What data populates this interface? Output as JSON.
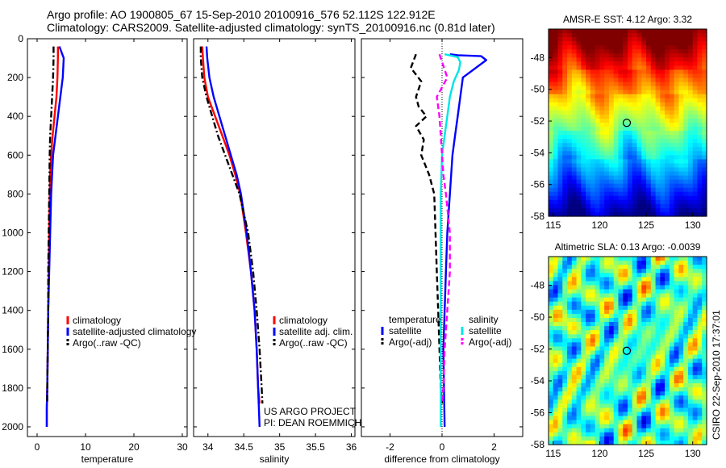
{
  "header": {
    "line1": "Argo profile: AO 1900805_67 15-Sep-2010 20100916_576 52.112S 122.912E",
    "line2": "Climatology: CARS2009. Satellite-adjusted climatology: synTS_20100916.nc (0.81d later)"
  },
  "side_label": "CSIRO 22-Sep-2010 17:37:01",
  "credit": {
    "line1": "US ARGO PROJECT",
    "line2": "PI: DEAN ROEMMICH"
  },
  "colors": {
    "climatology": "#ff0000",
    "satellite": "#0000ff",
    "argo": "#000000",
    "cyan": "#00e5e5",
    "magenta": "#ff00ff"
  },
  "chart_data": [
    {
      "type": "line",
      "xlabel": "temperature",
      "ylim": [
        2050,
        0
      ],
      "xlim": [
        -2,
        31
      ],
      "xticks": [
        0,
        10,
        20,
        30
      ],
      "yticks": [
        0,
        200,
        400,
        600,
        800,
        1000,
        1200,
        1400,
        1600,
        1800,
        2000
      ],
      "legend": [
        "climatology",
        "satellite-adjusted climatology",
        "Argo(..raw -QC)"
      ],
      "series": [
        {
          "name": "climatology",
          "color": "#ff0000",
          "dash": "solid",
          "x": [
            4.3,
            4.3,
            4.2,
            4.0,
            3.6,
            3.2,
            2.9,
            2.7,
            2.6,
            2.5,
            2.4,
            2.3,
            2.2,
            2.1,
            2.0,
            2.0
          ],
          "y": [
            40,
            100,
            200,
            300,
            400,
            500,
            600,
            700,
            800,
            1000,
            1200,
            1400,
            1600,
            1800,
            1900,
            2000
          ]
        },
        {
          "name": "satellite-adjusted climatology",
          "color": "#0000ff",
          "dash": "solid",
          "x": [
            4.6,
            5.2,
            5.5,
            5.3,
            4.8,
            4.3,
            3.8,
            3.3,
            2.9,
            2.7,
            2.5,
            2.3,
            2.2,
            2.1,
            2.0,
            2.0
          ],
          "y": [
            40,
            80,
            100,
            200,
            300,
            400,
            500,
            600,
            800,
            1000,
            1200,
            1400,
            1600,
            1800,
            1900,
            2000
          ]
        },
        {
          "name": "Argo(..raw -QC)",
          "color": "#000000",
          "dash": "dashdot",
          "x": [
            3.4,
            3.4,
            3.3,
            3.1,
            2.9,
            2.7,
            2.6,
            2.5,
            2.4,
            2.3,
            2.3,
            2.2,
            2.1,
            2.1
          ],
          "y": [
            40,
            100,
            200,
            300,
            400,
            500,
            600,
            800,
            1000,
            1200,
            1400,
            1600,
            1800,
            1880
          ]
        }
      ]
    },
    {
      "type": "line",
      "xlabel": "salinity",
      "ylim": [
        2050,
        0
      ],
      "xlim": [
        33.8,
        36.05
      ],
      "xticks": [
        34,
        34.5,
        35,
        35.5,
        36
      ],
      "legend": [
        "climatology",
        "satellite adj. clim.",
        "Argo(..raw -QC)"
      ],
      "series": [
        {
          "name": "climatology",
          "color": "#ff0000",
          "dash": "solid",
          "x": [
            33.92,
            33.93,
            33.95,
            34.0,
            34.1,
            34.2,
            34.3,
            34.38,
            34.45,
            34.53,
            34.6,
            34.65,
            34.68,
            34.7,
            34.72
          ],
          "y": [
            40,
            100,
            200,
            300,
            400,
            500,
            600,
            700,
            800,
            1000,
            1200,
            1400,
            1600,
            1800,
            1880
          ]
        },
        {
          "name": "satellite adj. clim.",
          "color": "#0000ff",
          "dash": "solid",
          "x": [
            33.98,
            33.99,
            34.02,
            34.08,
            34.16,
            34.24,
            34.32,
            34.4,
            34.46,
            34.54,
            34.6,
            34.65,
            34.68,
            34.7,
            34.72
          ],
          "y": [
            40,
            100,
            200,
            300,
            400,
            500,
            600,
            700,
            800,
            1000,
            1200,
            1400,
            1600,
            1800,
            2000
          ]
        },
        {
          "name": "Argo(..raw -QC)",
          "color": "#000000",
          "dash": "dashdot",
          "x": [
            33.9,
            33.9,
            33.92,
            33.98,
            34.06,
            34.14,
            34.24,
            34.34,
            34.44,
            34.56,
            34.63,
            34.68,
            34.72,
            34.75,
            34.76
          ],
          "y": [
            40,
            100,
            200,
            300,
            400,
            500,
            600,
            700,
            800,
            1000,
            1200,
            1400,
            1600,
            1800,
            1880
          ]
        }
      ]
    },
    {
      "type": "line",
      "xlabel": "difference from climatology",
      "ylim": [
        2050,
        0
      ],
      "xlim": [
        -3.1,
        3.1
      ],
      "xticks": [
        -2,
        0,
        2
      ],
      "legend_groups": [
        {
          "title": "temperature",
          "items": [
            "satellite",
            "Argo(-adj)"
          ]
        },
        {
          "title": "salinity",
          "items": [
            "satellite",
            "Argo(-adj)"
          ]
        }
      ],
      "series": [
        {
          "name": "satellite",
          "group": "temperature",
          "color": "#0000ff",
          "dash": "solid",
          "x": [
            0.3,
            0.6,
            1.5,
            1.7,
            0.8,
            0.7,
            0.6,
            0.5,
            0.4,
            0.3,
            0.2,
            0.15,
            0.1,
            0.05,
            0.1
          ],
          "y": [
            80,
            85,
            90,
            110,
            200,
            300,
            400,
            500,
            600,
            800,
            1000,
            1200,
            1400,
            1600,
            2000
          ]
        },
        {
          "name": "Argo(-adj)",
          "group": "temperature",
          "color": "#000000",
          "dash": "dashed",
          "x": [
            -1.0,
            -1.2,
            -0.8,
            -1.0,
            -0.9,
            -0.6,
            -1.0,
            -0.7,
            -0.8,
            -0.5,
            -0.3,
            -0.25,
            -0.2,
            -0.15,
            -0.1,
            -0.05,
            0.0
          ],
          "y": [
            80,
            150,
            220,
            300,
            350,
            400,
            450,
            520,
            600,
            700,
            800,
            1000,
            1200,
            1400,
            1600,
            1800,
            1880
          ]
        },
        {
          "name": "satellite",
          "group": "salinity",
          "color": "#00e5e5",
          "dash": "solid",
          "x": [
            0.1,
            0.6,
            0.7,
            0.65,
            0.45,
            0.3,
            0.2,
            0.1,
            0.0,
            -0.05,
            -0.05,
            -0.05,
            -0.05,
            -0.05,
            -0.05
          ],
          "y": [
            80,
            95,
            120,
            160,
            220,
            300,
            400,
            500,
            600,
            800,
            1000,
            1200,
            1400,
            1600,
            2000
          ]
        },
        {
          "name": "Argo(-adj)",
          "group": "salinity",
          "color": "#ff00ff",
          "dash": "dashed",
          "x": [
            -0.1,
            0.0,
            0.2,
            -0.2,
            -0.1,
            -0.05,
            0.0,
            0.05,
            0.15,
            0.3,
            0.3,
            0.2,
            0.1,
            0.05,
            0.0
          ],
          "y": [
            80,
            120,
            200,
            300,
            400,
            500,
            600,
            700,
            800,
            1000,
            1200,
            1400,
            1600,
            1800,
            1880
          ]
        }
      ],
      "zero_line": true
    },
    {
      "type": "heatmap",
      "title": "AMSR-E SST: 4.12 Argo: 3.32",
      "xlim": [
        114.5,
        131.5
      ],
      "ylim": [
        -58,
        -46.2
      ],
      "xticks": [
        115,
        120,
        125,
        130
      ],
      "yticks": [
        -48,
        -50,
        -52,
        -54,
        -56,
        -58
      ],
      "marker": {
        "x": 122.912,
        "y": -52.112
      },
      "field": "sst"
    },
    {
      "type": "heatmap",
      "title": "Altimetric SLA: 0.13 Argo: -0.0039",
      "xlim": [
        114.5,
        131.5
      ],
      "ylim": [
        -58,
        -46.2
      ],
      "xticks": [
        115,
        120,
        125,
        130
      ],
      "yticks": [
        -48,
        -50,
        -52,
        -54,
        -56,
        -58
      ],
      "marker": {
        "x": 122.912,
        "y": -52.112
      },
      "field": "sla"
    }
  ]
}
